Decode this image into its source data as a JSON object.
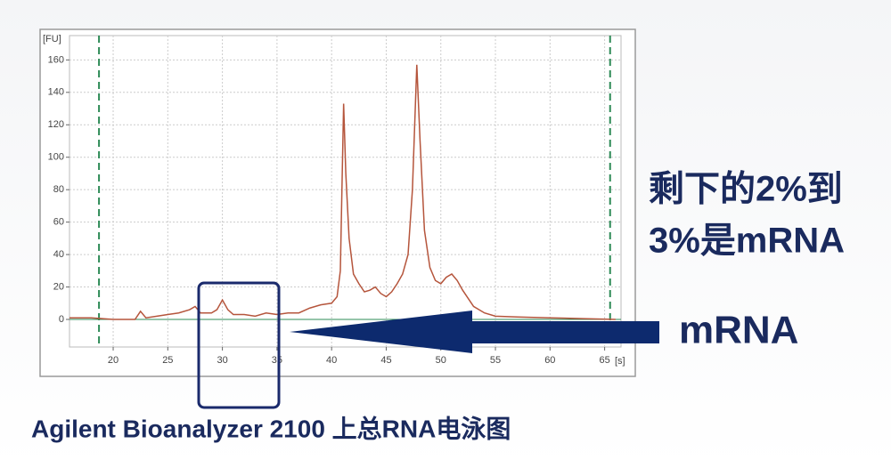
{
  "chart_data": {
    "type": "line",
    "y_axis_label": "[FU]",
    "x_axis_label": "[s]",
    "x": [
      16,
      18,
      20,
      22,
      22.5,
      23,
      24,
      25,
      26,
      27,
      27.5,
      28,
      29,
      29.5,
      30,
      30.5,
      31,
      32,
      33,
      34,
      35,
      36,
      37,
      38,
      39,
      40,
      40.5,
      40.8,
      41.1,
      41.3,
      41.6,
      42,
      42.5,
      43,
      43.5,
      44,
      44.5,
      45,
      45.5,
      46,
      46.5,
      47,
      47.4,
      47.8,
      48.1,
      48.5,
      49,
      49.5,
      50,
      50.5,
      51,
      51.5,
      52,
      53,
      54,
      55,
      57,
      60,
      63,
      66
    ],
    "series": [
      {
        "name": "RNA",
        "color": "#b5553c",
        "values": [
          1,
          1,
          0,
          0,
          5,
          1,
          2,
          3,
          4,
          6,
          8,
          4,
          4,
          6,
          12,
          6,
          3,
          3,
          2,
          4,
          3,
          4,
          4,
          7,
          9,
          10,
          14,
          30,
          133,
          90,
          50,
          28,
          22,
          17,
          18,
          20,
          16,
          14,
          17,
          22,
          28,
          40,
          80,
          157,
          110,
          55,
          32,
          24,
          22,
          26,
          28,
          24,
          18,
          8,
          4,
          2,
          1.5,
          1,
          0.5,
          0
        ]
      }
    ],
    "markers": [
      18.7,
      65.5
    ],
    "marker_color": "#2e8b57",
    "xlim": [
      16,
      66.5
    ],
    "ylim": [
      -17,
      175
    ],
    "xticks": [
      20,
      25,
      30,
      35,
      40,
      45,
      50,
      55,
      60,
      65
    ],
    "yticks": [
      0,
      20,
      40,
      60,
      80,
      100,
      120,
      140,
      160
    ],
    "grid": true,
    "annotations": [
      "剩下的2%到",
      "3%是mRNA",
      "mRNA"
    ],
    "caption": "Agilent Bioanalyzer 2100 上总RNA电泳图"
  }
}
